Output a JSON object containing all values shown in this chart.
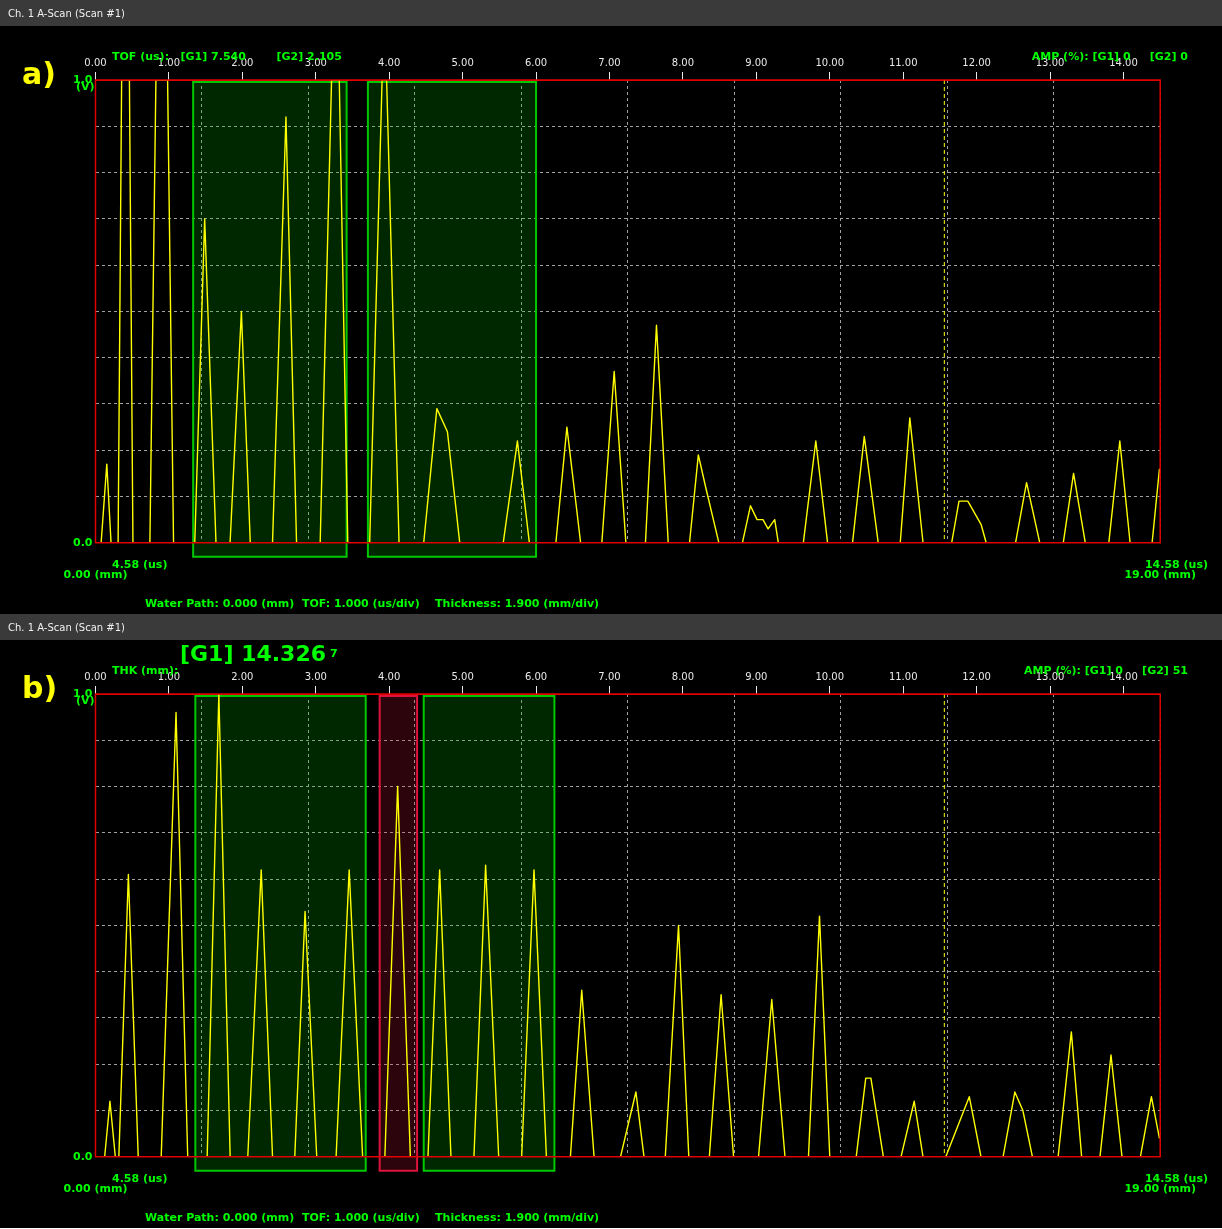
{
  "chart_data": [
    {
      "type": "line",
      "title": "Ch. 1 A-Scan (Scan #1)",
      "subtitle": "a)",
      "ylabel": "(V)",
      "annotations": [
        "TOF (us):   [G1] 7.540        [G2] 2.105",
        "AMP (%): [G1] 0     [G2] 0",
        "4.58 (us)",
        "14.58 (us)",
        "Water Path: 0.000 (mm)  TOF: 1.000 (us/div)    Thickness: 1.900 (mm/div)"
      ],
      "x": [
        0.077,
        0.154,
        0.212,
        0.308,
        0.356,
        0.462,
        0.51,
        0.741,
        0.823,
        0.982,
        1.063,
        1.352,
        1.487,
        1.641,
        1.833,
        1.987,
        2.108,
        2.411,
        2.594,
        2.738,
        3.06,
        3.215,
        3.32,
        3.436,
        3.734,
        3.903,
        3.965,
        4.134,
        4.47,
        4.649,
        4.793,
        4.961,
        5.553,
        5.746,
        5.909,
        6.27,
        6.42,
        6.607,
        6.896,
        7.064,
        7.223,
        7.49,
        7.64,
        7.8,
        8.09,
        8.21,
        8.31,
        8.49,
        8.81,
        8.92,
        9.01,
        9.09,
        9.16,
        9.25,
        9.3,
        9.64,
        9.81,
        9.97,
        10.31,
        10.47,
        10.66,
        10.96,
        11.09,
        11.27,
        11.66,
        11.76,
        11.88,
        12.06,
        12.13,
        12.53,
        12.68,
        12.86,
        13.18,
        13.32,
        13.48,
        13.8,
        13.95,
        14.09,
        14.39,
        14.49
      ],
      "series": [
        {
          "color": "#ffff00",
          "values": [
            0,
            0.17,
            0,
            0,
            1,
            1,
            0,
            0,
            1,
            1,
            0,
            0,
            0.7,
            0,
            0,
            0.5,
            0,
            0,
            0.92,
            0,
            0,
            1,
            1,
            0,
            0,
            1,
            1,
            0,
            0,
            0.29,
            0.24,
            0,
            0,
            0.22,
            0,
            0,
            0.25,
            0,
            0,
            0.37,
            0,
            0,
            0.47,
            0,
            0,
            0.19,
            0.12,
            0,
            0,
            0.08,
            0.05,
            0.05,
            0.03,
            0.05,
            0,
            0,
            0.22,
            0,
            0,
            0.23,
            0,
            0,
            0.27,
            0,
            0,
            0.09,
            0.09,
            0.04,
            0,
            0,
            0.13,
            0,
            0,
            0.15,
            0,
            0,
            0.22,
            0,
            0,
            0.16
          ]
        }
      ],
      "xlim": [
        0,
        14.5
      ],
      "xticks": [
        {
          "value": 0,
          "label": "0.00"
        },
        {
          "value": 1,
          "label": "1.00"
        },
        {
          "value": 2,
          "label": "2.00"
        },
        {
          "value": 3,
          "label": "3.00"
        },
        {
          "value": 4,
          "label": "4.00"
        },
        {
          "value": 5,
          "label": "5.00"
        },
        {
          "value": 6,
          "label": "6.00"
        },
        {
          "value": 7,
          "label": "7.00"
        },
        {
          "value": 8,
          "label": "8.00"
        },
        {
          "value": 9,
          "label": "9.00"
        },
        {
          "value": 10,
          "label": "10.00"
        },
        {
          "value": 11,
          "label": "11.00"
        },
        {
          "value": 12,
          "label": "12.00"
        },
        {
          "value": 13,
          "label": "13.00"
        },
        {
          "value": 14,
          "label": "14.00"
        }
      ],
      "x2lim": [
        0,
        19
      ],
      "x2ticks": [
        {
          "value": 0,
          "label": "0.00 (mm)"
        },
        {
          "value": 1.9,
          "label": null
        },
        {
          "value": 3.8,
          "label": null
        },
        {
          "value": 5.7,
          "label": null
        },
        {
          "value": 7.6,
          "label": null
        },
        {
          "value": 9.5,
          "label": null
        },
        {
          "value": 11.4,
          "label": null
        },
        {
          "value": 13.3,
          "label": null
        },
        {
          "value": 15.2,
          "label": null
        },
        {
          "value": 17.1,
          "label": null
        },
        {
          "value": 19,
          "label": "19.00 (mm)"
        }
      ],
      "ylim": [
        0,
        1
      ],
      "yticks": [
        {
          "value": 0,
          "label": "0.0"
        },
        {
          "value": 0.1,
          "label": null
        },
        {
          "value": 0.2,
          "label": null
        },
        {
          "value": 0.3,
          "label": null
        },
        {
          "value": 0.4,
          "label": null
        },
        {
          "value": 0.5,
          "label": null
        },
        {
          "value": 0.6,
          "label": null
        },
        {
          "value": 0.7,
          "label": null
        },
        {
          "value": 0.8,
          "label": null
        },
        {
          "value": 0.9,
          "label": null
        },
        {
          "value": 1,
          "label": "1.0"
        }
      ],
      "grid": true,
      "ref_lines": [
        {
          "axis": "x",
          "value": 11.56,
          "color": "#ffff00",
          "line_style": "dashed"
        }
      ],
      "bands": [
        {
          "axis": "x",
          "from": 1.33,
          "to": 3.42,
          "color": "#00c800"
        },
        {
          "axis": "x",
          "from": 3.71,
          "to": 6.0,
          "color": "#00c800"
        }
      ]
    },
    {
      "type": "line",
      "title": "Ch. 1 A-Scan (Scan #1)",
      "subtitle": "b)",
      "ylabel": "(V)",
      "annotations": [
        "THK (mm):",
        "AMP (%): [G1] 0     [G2] 51",
        "4.58 (us)",
        "14.58 (us)",
        "Water Path: 0.000 (mm)  TOF: 1.000 (us/div)    Thickness: 1.900 (mm/div)",
        "[G1] 14.326",
        "7"
      ],
      "x": [
        0.125,
        0.197,
        0.27,
        0.318,
        0.448,
        0.582,
        0.895,
        1.097,
        1.256,
        1.521,
        1.68,
        1.834,
        2.074,
        2.257,
        2.411,
        2.714,
        2.854,
        3.013,
        3.277,
        3.455,
        3.638,
        3.941,
        4.115,
        4.288,
        4.528,
        4.687,
        4.841,
        5.154,
        5.313,
        5.491,
        5.804,
        5.972,
        6.141,
        6.468,
        6.622,
        6.79,
        7.15,
        7.36,
        7.47,
        7.76,
        7.94,
        8.08,
        8.36,
        8.52,
        8.69,
        9.03,
        9.21,
        9.39,
        9.71,
        9.86,
        10.0,
        10.36,
        10.49,
        10.56,
        10.73,
        10.97,
        11.15,
        11.27,
        11.58,
        11.9,
        12.06,
        12.36,
        12.52,
        12.63,
        12.76,
        13.11,
        13.29,
        13.43,
        13.68,
        13.83,
        13.98,
        14.23,
        14.38,
        14.49
      ],
      "series": [
        {
          "color": "#ffff00",
          "values": [
            0,
            0.12,
            0,
            0,
            0.61,
            0,
            0,
            0.96,
            0,
            0,
            1,
            0,
            0,
            0.62,
            0,
            0,
            0.53,
            0,
            0,
            0.62,
            0,
            0,
            0.8,
            0,
            0,
            0.62,
            0,
            0,
            0.63,
            0,
            0,
            0.62,
            0,
            0,
            0.36,
            0,
            0,
            0.14,
            0,
            0,
            0.5,
            0,
            0,
            0.35,
            0,
            0,
            0.34,
            0,
            0,
            0.52,
            0,
            0,
            0.17,
            0.17,
            0,
            0,
            0.12,
            0,
            0,
            0.13,
            0,
            0,
            0.14,
            0.1,
            0,
            0,
            0.27,
            0,
            0,
            0.22,
            0,
            0,
            0.13,
            0.04
          ]
        }
      ],
      "xlim": [
        0,
        14.5
      ],
      "xticks": [
        {
          "value": 0,
          "label": "0.00"
        },
        {
          "value": 1,
          "label": "1.00"
        },
        {
          "value": 2,
          "label": "2.00"
        },
        {
          "value": 3,
          "label": "3.00"
        },
        {
          "value": 4,
          "label": "4.00"
        },
        {
          "value": 5,
          "label": "5.00"
        },
        {
          "value": 6,
          "label": "6.00"
        },
        {
          "value": 7,
          "label": "7.00"
        },
        {
          "value": 8,
          "label": "8.00"
        },
        {
          "value": 9,
          "label": "9.00"
        },
        {
          "value": 10,
          "label": "10.00"
        },
        {
          "value": 11,
          "label": "11.00"
        },
        {
          "value": 12,
          "label": "12.00"
        },
        {
          "value": 13,
          "label": "13.00"
        },
        {
          "value": 14,
          "label": "14.00"
        }
      ],
      "x2lim": [
        0,
        19
      ],
      "x2ticks": [
        {
          "value": 0,
          "label": "0.00 (mm)"
        },
        {
          "value": 1.9,
          "label": null
        },
        {
          "value": 3.8,
          "label": null
        },
        {
          "value": 5.7,
          "label": null
        },
        {
          "value": 7.6,
          "label": null
        },
        {
          "value": 9.5,
          "label": null
        },
        {
          "value": 11.4,
          "label": null
        },
        {
          "value": 13.3,
          "label": null
        },
        {
          "value": 15.2,
          "label": null
        },
        {
          "value": 17.1,
          "label": null
        },
        {
          "value": 19,
          "label": "19.00 (mm)"
        }
      ],
      "ylim": [
        0,
        1
      ],
      "yticks": [
        {
          "value": 0,
          "label": "0.0"
        },
        {
          "value": 0.1,
          "label": null
        },
        {
          "value": 0.2,
          "label": null
        },
        {
          "value": 0.3,
          "label": null
        },
        {
          "value": 0.4,
          "label": null
        },
        {
          "value": 0.5,
          "label": null
        },
        {
          "value": 0.6,
          "label": null
        },
        {
          "value": 0.7,
          "label": null
        },
        {
          "value": 0.8,
          "label": null
        },
        {
          "value": 0.9,
          "label": null
        },
        {
          "value": 1,
          "label": "1.0"
        }
      ],
      "grid": true,
      "ref_lines": [
        {
          "axis": "x",
          "value": 11.56,
          "color": "#ffff00",
          "line_style": "dashed"
        }
      ],
      "bands": [
        {
          "axis": "x",
          "from": 1.36,
          "to": 3.68,
          "color": "#00c800"
        },
        {
          "axis": "x",
          "from": 4.47,
          "to": 6.25,
          "color": "#00c800"
        },
        {
          "axis": "x",
          "from": 3.87,
          "to": 4.38,
          "color": "#dc143c"
        }
      ]
    }
  ]
}
